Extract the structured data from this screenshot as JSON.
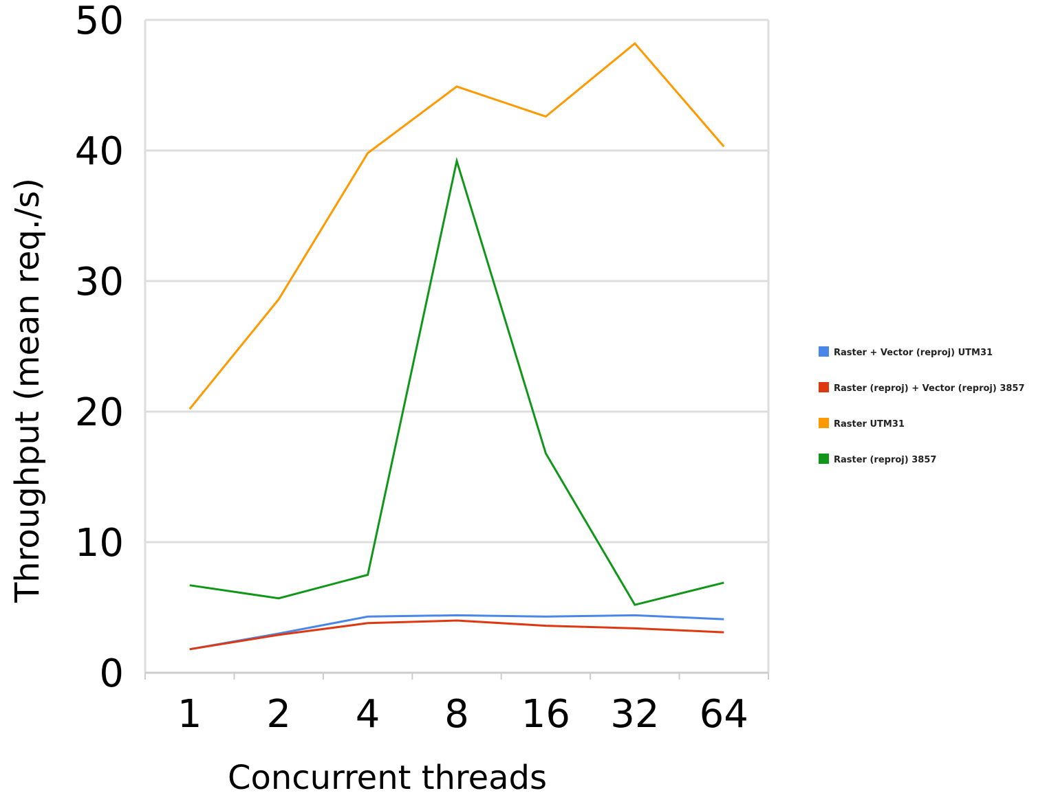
{
  "chart_data": {
    "type": "line",
    "title": "",
    "xlabel": "Concurrent threads",
    "ylabel": "Throughput (mean req./s)",
    "categories": [
      "1",
      "2",
      "4",
      "8",
      "16",
      "32",
      "64"
    ],
    "ylim": [
      0,
      50
    ],
    "yticks": [
      "0",
      "10",
      "20",
      "30",
      "40",
      "50"
    ],
    "grid": true,
    "legend_position": "right",
    "series": [
      {
        "name": "Raster + Vector (reproj) UTM31",
        "color": "#4a86e8",
        "values": [
          1.8,
          3.0,
          4.3,
          4.4,
          4.3,
          4.4,
          4.1
        ]
      },
      {
        "name": "Raster (reproj) + Vector (reproj) 3857",
        "color": "#dc3912",
        "values": [
          1.8,
          2.9,
          3.8,
          4.0,
          3.6,
          3.4,
          3.1
        ]
      },
      {
        "name": "Raster UTM31",
        "color": "#ff9900",
        "values": [
          20.2,
          28.6,
          39.8,
          44.9,
          42.6,
          48.2,
          40.3
        ]
      },
      {
        "name": "Raster (reproj) 3857",
        "color": "#109618",
        "values": [
          6.7,
          5.7,
          7.5,
          39.2,
          16.8,
          5.2,
          6.9
        ]
      }
    ]
  }
}
